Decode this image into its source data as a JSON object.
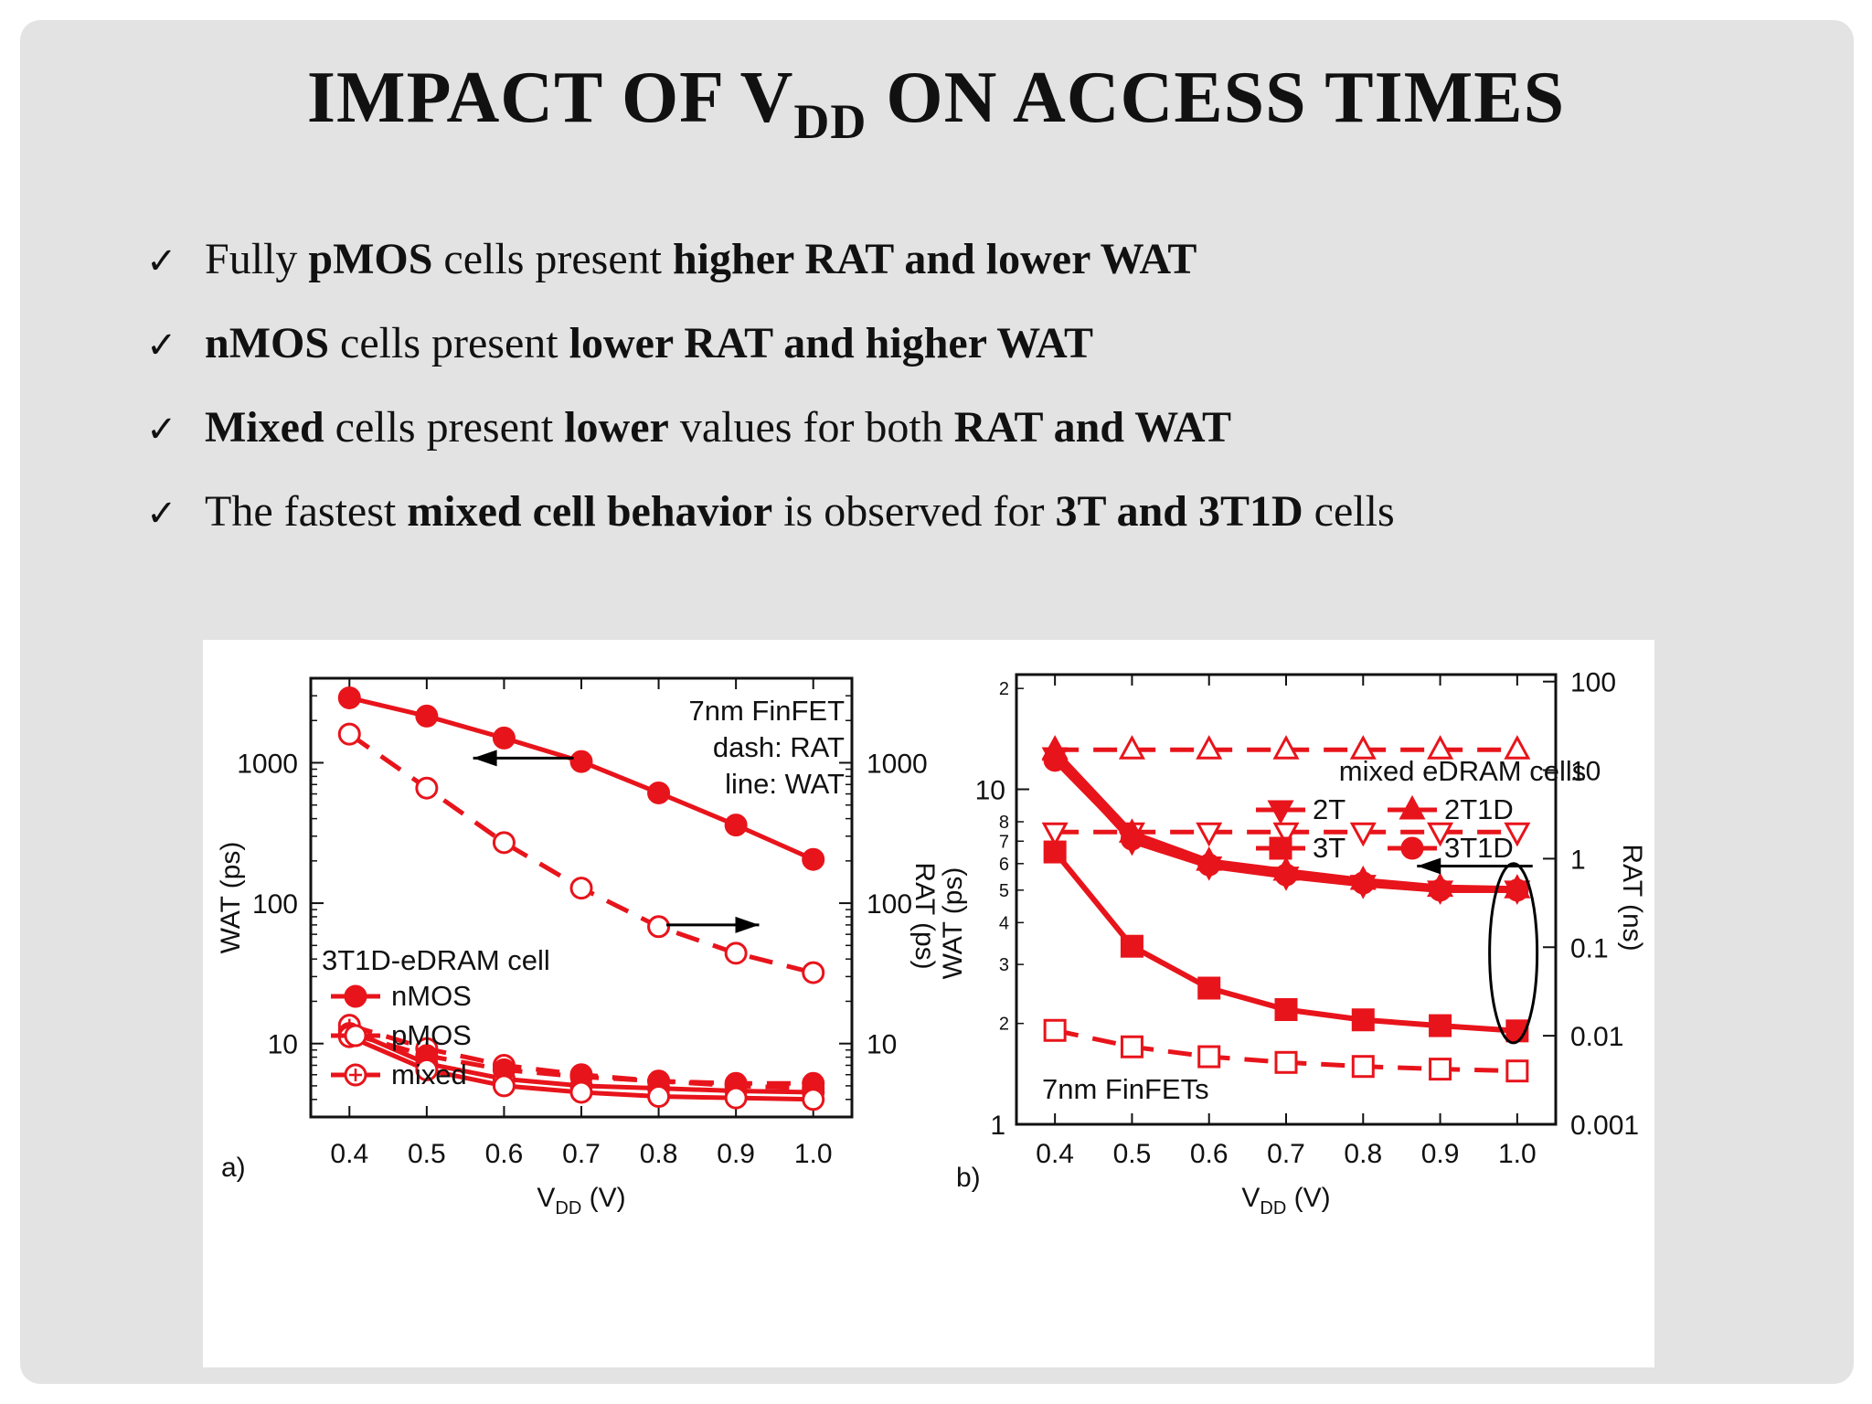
{
  "slide": {
    "title": {
      "main": "IMPACT OF V",
      "subscript": "DD",
      "rest": " ON ACCESS TIMES"
    },
    "bullets": [
      [
        {
          "t": "Fully ",
          "b": false
        },
        {
          "t": "pMOS",
          "b": true
        },
        {
          "t": " cells present ",
          "b": false
        },
        {
          "t": "higher RAT and lower WAT",
          "b": true
        }
      ],
      [
        {
          "t": "nMOS",
          "b": true
        },
        {
          "t": " cells present ",
          "b": false
        },
        {
          "t": "lower RAT and higher WAT",
          "b": true
        }
      ],
      [
        {
          "t": "Mixed",
          "b": true
        },
        {
          "t": " cells present ",
          "b": false
        },
        {
          "t": "lower",
          "b": true
        },
        {
          "t": " values for both ",
          "b": false
        },
        {
          "t": "RAT and WAT",
          "b": true
        }
      ],
      [
        {
          "t": "The fastest ",
          "b": false
        },
        {
          "t": "mixed cell behavior",
          "b": true
        },
        {
          "t": " is observed for ",
          "b": false
        },
        {
          "t": "3T and 3T1D",
          "b": true
        },
        {
          "t": " cells",
          "b": false
        }
      ]
    ],
    "check_glyph": "✓"
  },
  "colors": {
    "series": "#e8141b",
    "frame": "#111111",
    "ellipse": "#000000",
    "arrow": "#000000"
  },
  "chart_data": [
    {
      "type": "line",
      "panel_label": "a)",
      "x": [
        0.4,
        0.5,
        0.6,
        0.7,
        0.8,
        0.9,
        1.0
      ],
      "x_tick_labels": [
        "0.4",
        "0.5",
        "0.6",
        "0.7",
        "0.8",
        "0.9",
        "1.0"
      ],
      "xlim": [
        0.35,
        1.05
      ],
      "xlabel": {
        "main": "V",
        "subscript": "DD",
        "rest": " (V)"
      },
      "y_left": {
        "label": "WAT (ps)",
        "scale": "log",
        "lim": [
          3,
          4000
        ],
        "ticks": [
          10,
          100,
          1000
        ],
        "tick_labels": [
          "10",
          "100",
          "1000"
        ]
      },
      "y_right": {
        "label": "RAT (ps)",
        "scale": "log",
        "lim": [
          3,
          4000
        ],
        "ticks": [
          10,
          100,
          1000
        ],
        "tick_labels": [
          "10",
          "100",
          "1000"
        ]
      },
      "annotation": [
        "7nm FinFET",
        "dash: RAT",
        "line: WAT"
      ],
      "legend_title": "3T1D-eDRAM cell",
      "legend": [
        {
          "name": "nMOS",
          "marker": "filled-circle"
        },
        {
          "name": "pMOS",
          "marker": "open-circle"
        },
        {
          "name": "mixed",
          "marker": "plus-circle"
        }
      ],
      "series": [
        {
          "name": "nMOS",
          "metric": "WAT",
          "style": "solid",
          "marker": "filled-circle",
          "axis": "left",
          "values": [
            2900,
            2150,
            1500,
            1020,
            610,
            360,
            205
          ]
        },
        {
          "name": "pMOS",
          "metric": "RAT",
          "style": "dash",
          "marker": "open-circle",
          "axis": "right",
          "values": [
            1600,
            660,
            270,
            128,
            68,
            44,
            32
          ]
        },
        {
          "name": "mixed",
          "metric": "WAT",
          "style": "solid",
          "marker": "plus-circle",
          "axis": "left",
          "values": [
            12.5,
            7.2,
            5.6,
            5.0,
            4.8,
            4.6,
            4.5
          ]
        },
        {
          "name": "mixed",
          "metric": "RAT",
          "style": "dash",
          "marker": "plus-circle",
          "axis": "right",
          "values": [
            13.5,
            9.2,
            7.0,
            6.0,
            5.4,
            5.0,
            4.8
          ]
        },
        {
          "name": "nMOS",
          "metric": "RAT",
          "style": "dash",
          "marker": "filled-circle",
          "axis": "right",
          "values": [
            11.8,
            8.2,
            6.5,
            5.8,
            5.4,
            5.2,
            5.2
          ]
        },
        {
          "name": "pMOS",
          "metric": "WAT",
          "style": "solid",
          "marker": "open-circle",
          "axis": "left",
          "values": [
            11.2,
            6.5,
            5.0,
            4.5,
            4.2,
            4.1,
            4.0
          ]
        }
      ],
      "arrows": [
        {
          "direction": "left",
          "from": [
            0.69,
            1080
          ],
          "to": [
            0.56,
            1080
          ],
          "axis": "left"
        },
        {
          "direction": "right",
          "from": [
            0.81,
            70
          ],
          "to": [
            0.93,
            70
          ],
          "axis": "right"
        }
      ]
    },
    {
      "type": "line",
      "panel_label": "b)",
      "x": [
        0.4,
        0.5,
        0.6,
        0.7,
        0.8,
        0.9,
        1.0
      ],
      "x_tick_labels": [
        "0.4",
        "0.5",
        "0.6",
        "0.7",
        "0.8",
        "0.9",
        "1.0"
      ],
      "xlim": [
        0.35,
        1.05
      ],
      "xlabel": {
        "main": "V",
        "subscript": "DD",
        "rest": " (V)"
      },
      "y_left": {
        "label": "WAT (ps)",
        "scale": "log",
        "lim": [
          1,
          22
        ],
        "major_ticks": [
          1,
          10
        ],
        "major_tick_labels": [
          "1",
          "10"
        ],
        "minor_ticks": [
          2,
          3,
          4,
          5,
          6,
          7,
          8,
          20
        ],
        "minor_tick_labels": [
          "2",
          "3",
          "4",
          "5",
          "6",
          "7",
          "8",
          "2"
        ]
      },
      "y_right": {
        "label": "RAT (ns)",
        "scale": "log",
        "lim": [
          0.001,
          120
        ],
        "ticks": [
          0.001,
          0.01,
          0.1,
          1,
          10,
          100
        ],
        "tick_labels": [
          "0.001",
          "0.01",
          "0.1",
          "1",
          "10",
          "100"
        ]
      },
      "annotation": [
        "7nm FinFETs"
      ],
      "legend_title": "mixed eDRAM cells",
      "legend": [
        {
          "name": "2T",
          "marker": "down-triangle"
        },
        {
          "name": "2T1D",
          "marker": "up-triangle"
        },
        {
          "name": "3T",
          "marker": "square"
        },
        {
          "name": "3T1D",
          "marker": "filled-circle"
        }
      ],
      "series": [
        {
          "name": "2T1D",
          "metric": "RAT",
          "style": "dash",
          "marker": "open-up-triangle",
          "axis": "right",
          "values": [
            17,
            17,
            17,
            17,
            17,
            17,
            17
          ]
        },
        {
          "name": "2T",
          "metric": "RAT",
          "style": "dash",
          "marker": "open-down-triangle",
          "axis": "right",
          "values": [
            2.0,
            2.0,
            2.0,
            2.0,
            2.0,
            2.0,
            2.0
          ]
        },
        {
          "name": "3T",
          "metric": "RAT",
          "style": "dash",
          "marker": "open-square",
          "axis": "right",
          "values": [
            0.0115,
            0.0075,
            0.0058,
            0.005,
            0.0045,
            0.0042,
            0.004
          ]
        },
        {
          "name": "2T",
          "metric": "WAT",
          "style": "solid",
          "marker": "filled-down-triangle",
          "axis": "left",
          "values": [
            12.5,
            7.0,
            5.9,
            5.5,
            5.2,
            5.0,
            5.0
          ]
        },
        {
          "name": "2T1D",
          "metric": "WAT",
          "style": "solid",
          "marker": "filled-up-triangle",
          "axis": "left",
          "values": [
            13.0,
            7.4,
            6.1,
            5.7,
            5.35,
            5.1,
            5.05
          ]
        },
        {
          "name": "3T1D",
          "metric": "WAT",
          "style": "solid",
          "marker": "filled-circle",
          "axis": "left",
          "values": [
            12.2,
            7.1,
            5.95,
            5.55,
            5.25,
            5.0,
            5.0
          ]
        },
        {
          "name": "3T",
          "metric": "WAT",
          "style": "solid",
          "marker": "filled-square",
          "axis": "left",
          "values": [
            6.5,
            3.4,
            2.55,
            2.2,
            2.05,
            1.97,
            1.9
          ]
        }
      ],
      "arrows": [
        {
          "direction": "left",
          "from": [
            1.02,
            5.9
          ],
          "to": [
            0.87,
            5.9
          ],
          "axis": "left"
        }
      ],
      "ellipse": {
        "cx": 0.995,
        "cy_low": 1.75,
        "cy_high": 6.0,
        "axis": "left"
      }
    }
  ]
}
